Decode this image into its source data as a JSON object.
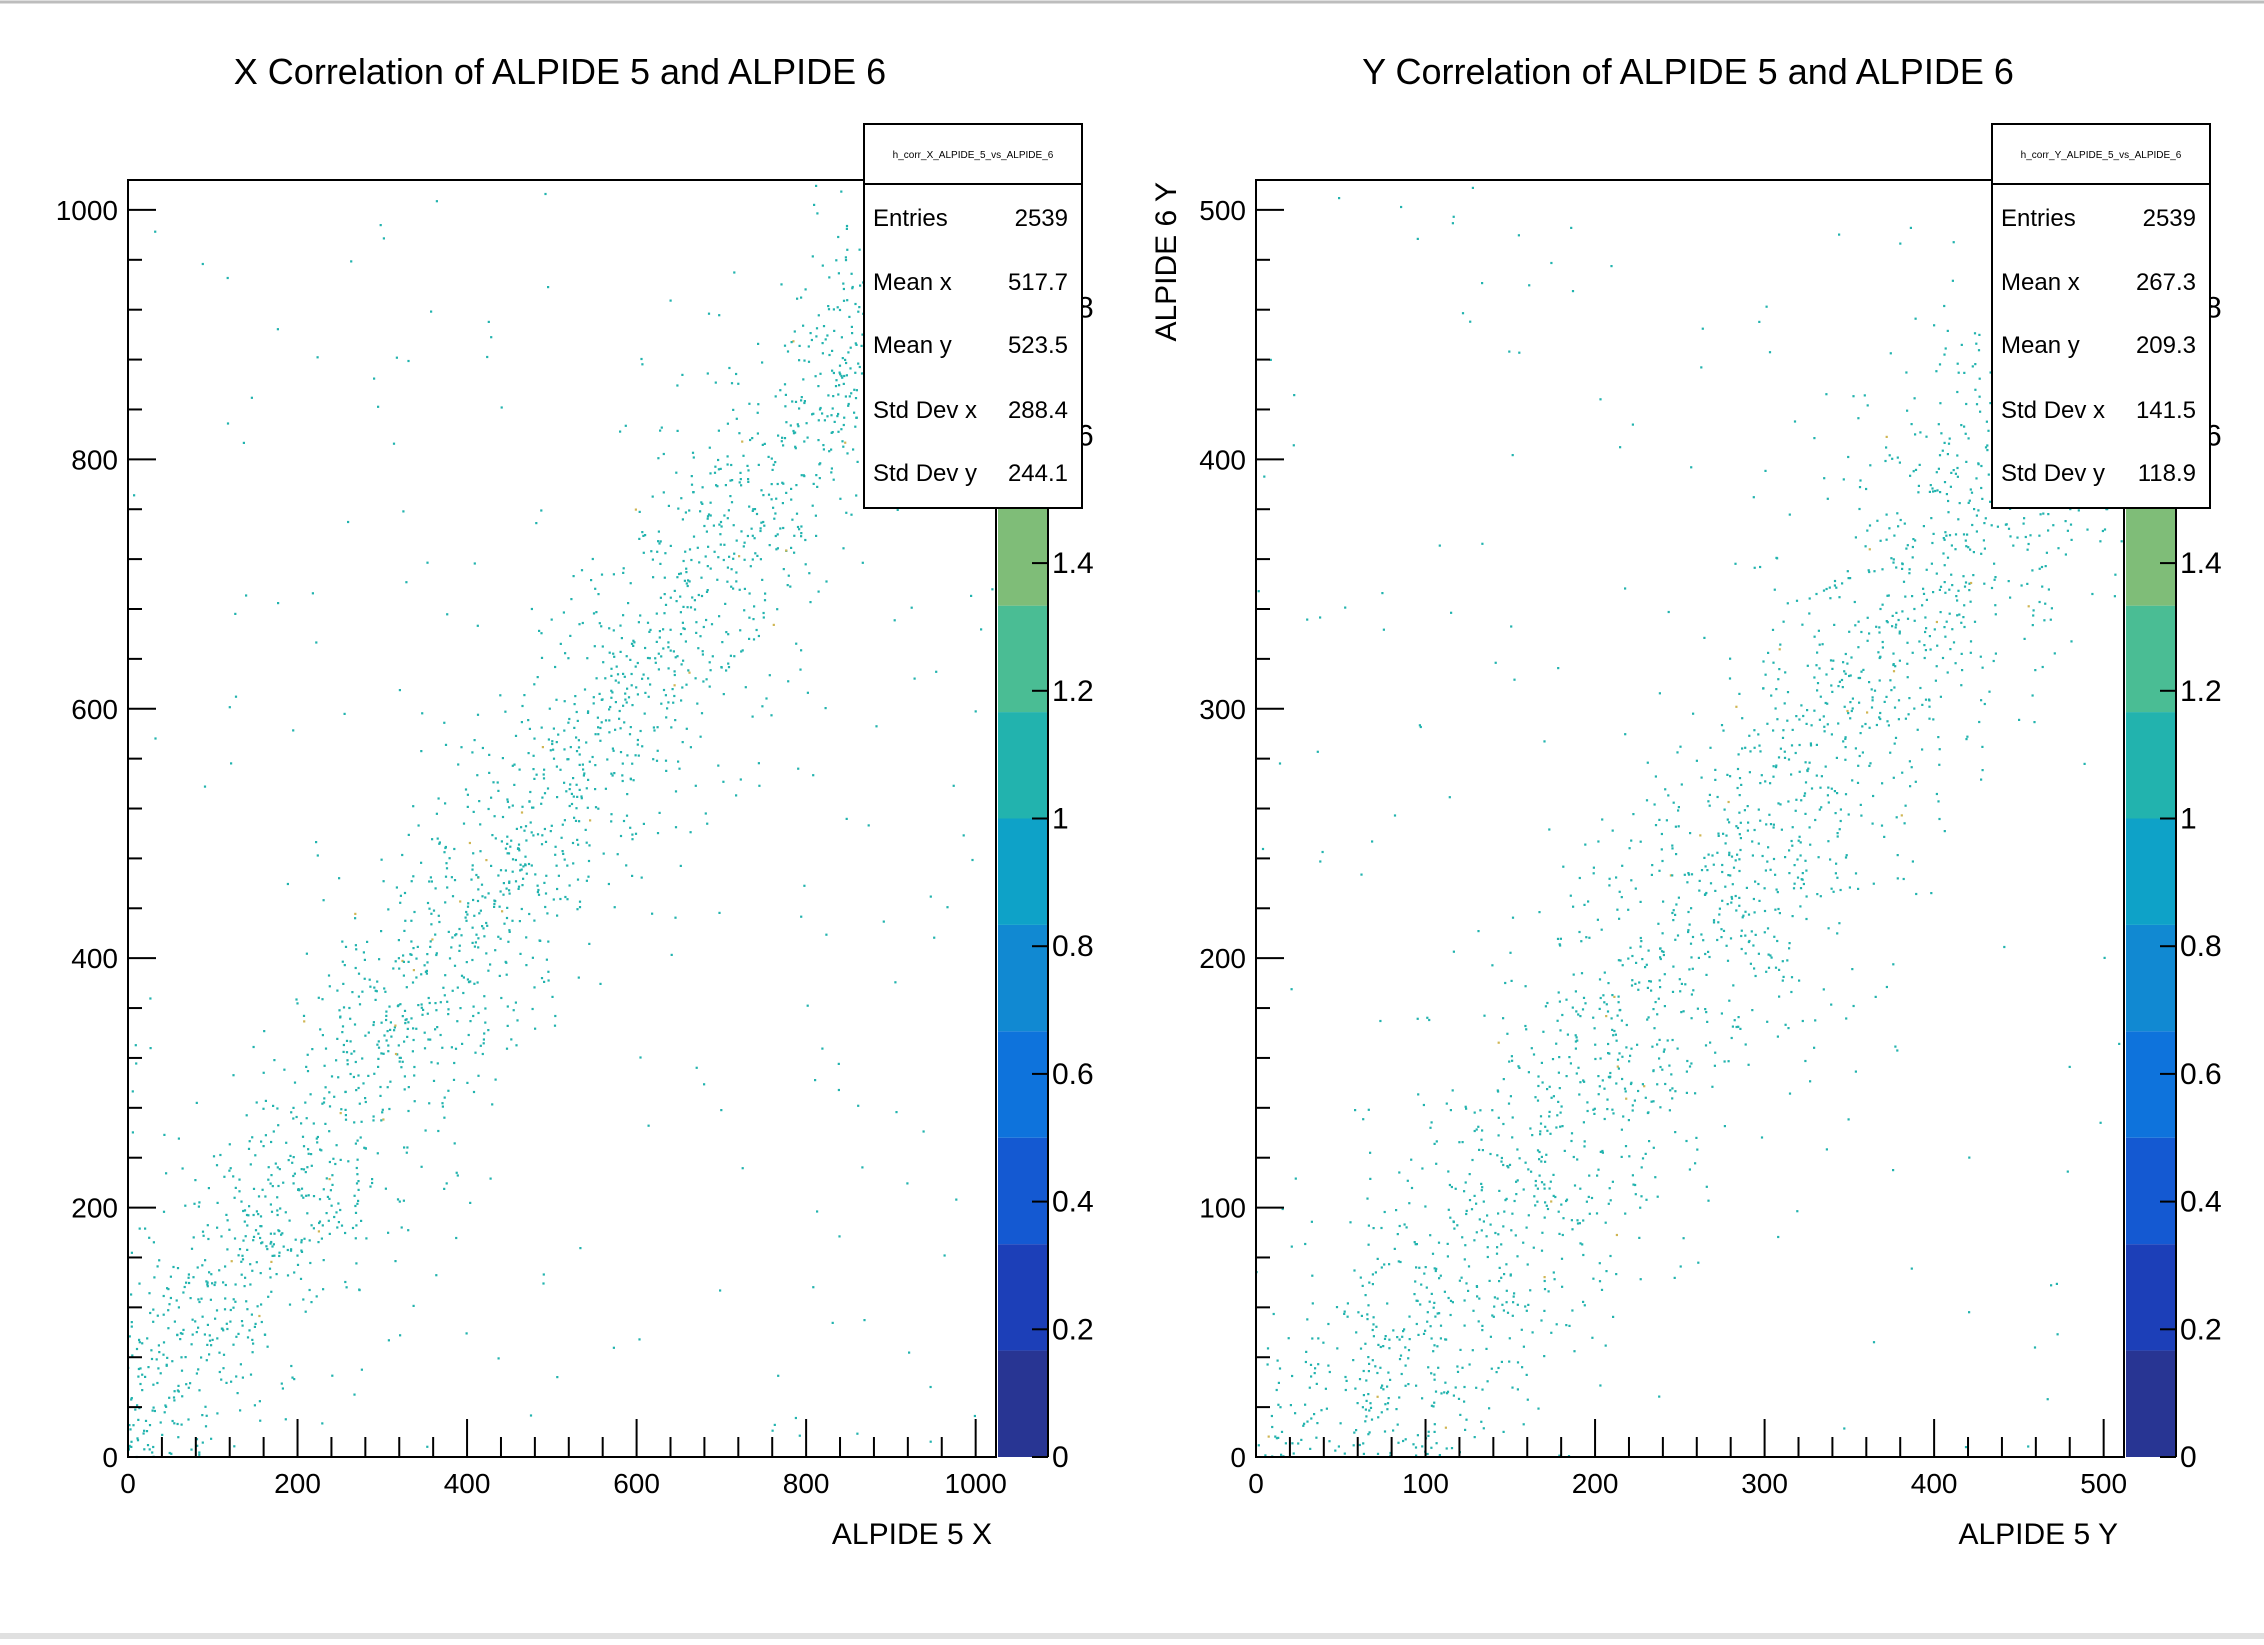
{
  "chart_data": [
    {
      "type": "heatmap",
      "title": "X Correlation of ALPIDE 5 and ALPIDE 6",
      "xlabel": "ALPIDE 5 X",
      "ylabel": "",
      "xlim": [
        0,
        1024
      ],
      "ylim": [
        0,
        1024
      ],
      "x_ticks": [
        0,
        200,
        400,
        600,
        800,
        1000
      ],
      "y_ticks": [
        0,
        200,
        400,
        600,
        800,
        1000
      ],
      "z_ticks": [
        "0",
        "0.2",
        "0.4",
        "0.6",
        "0.8",
        "1",
        "1.2",
        "1.4",
        "1.6",
        "1.8"
      ],
      "zlim": [
        0,
        2
      ],
      "stats": {
        "name": "h_corr_X_ALPIDE_5_vs_ALPIDE_6",
        "rows": [
          {
            "label": "Entries",
            "value": "2539"
          },
          {
            "label": "Mean x",
            "value": "517.7"
          },
          {
            "label": "Mean y",
            "value": "523.5"
          },
          {
            "label": "Std Dev x",
            "value": "288.4"
          },
          {
            "label": "Std Dev y",
            "value": "244.1"
          }
        ]
      },
      "band": {
        "offset": 20,
        "width": 70,
        "entries": 2539,
        "background_fraction": 0.09
      }
    },
    {
      "type": "heatmap",
      "title": "Y Correlation of ALPIDE 5 and ALPIDE 6",
      "xlabel": "ALPIDE 5 Y",
      "ylabel": "ALPIDE 6 Y",
      "xlim": [
        0,
        512
      ],
      "ylim": [
        0,
        512
      ],
      "x_ticks": [
        0,
        100,
        200,
        300,
        400,
        500
      ],
      "y_ticks": [
        0,
        100,
        200,
        300,
        400,
        500
      ],
      "z_ticks": [
        "0",
        "0.2",
        "0.4",
        "0.6",
        "0.8",
        "1",
        "1.2",
        "1.4",
        "1.6",
        "1.8"
      ],
      "zlim": [
        0,
        2
      ],
      "stats": {
        "name": "h_corr_Y_ALPIDE_5_vs_ALPIDE_6",
        "rows": [
          {
            "label": "Entries",
            "value": "2539"
          },
          {
            "label": "Mean x",
            "value": "267.3"
          },
          {
            "label": "Mean y",
            "value": "209.3"
          },
          {
            "label": "Std Dev x",
            "value": "141.5"
          },
          {
            "label": "Std Dev y",
            "value": "118.9"
          }
        ]
      },
      "band": {
        "offset": -50,
        "width": 45,
        "entries": 2539,
        "background_fraction": 0.07
      }
    }
  ],
  "colors": {
    "palette": [
      "#283593",
      "#1c3fb8",
      "#1459d2",
      "#0e73dc",
      "#1189d2",
      "#0ea2c8",
      "#22b3ae",
      "#4abd94",
      "#7fbd78",
      "#a9bb62",
      "#d0b654",
      "#e9c24c"
    ],
    "frame": "#000000",
    "background": "#ffffff"
  }
}
